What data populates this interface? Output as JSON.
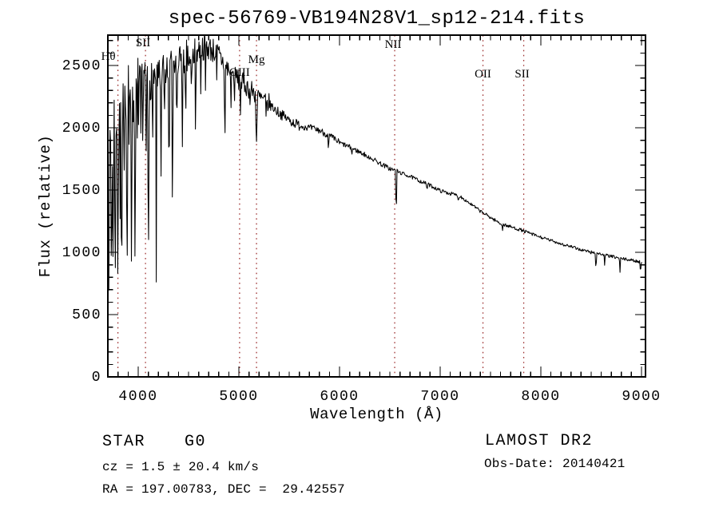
{
  "title": "spec-56769-VB194N28V1_sp12-214.fits",
  "axes": {
    "x": {
      "label": "Wavelength (Å)",
      "min": 3698,
      "max": 9040,
      "major_ticks": [
        4000,
        5000,
        6000,
        7000,
        8000,
        9000
      ],
      "minor_step": 100
    },
    "y": {
      "label": "Flux (relative)",
      "min": 0,
      "max": 2744,
      "major_ticks": [
        0,
        500,
        1000,
        1500,
        2000,
        2500
      ],
      "minor_step": 100
    }
  },
  "spectral_line_markers": [
    {
      "label": "Hθ",
      "wavelength": 3798,
      "label_y": 70,
      "label_dx": -12
    },
    {
      "label": "SII",
      "wavelength": 4072,
      "label_y": 53,
      "label_dx": -3
    },
    {
      "label": "OIII",
      "wavelength": 5007,
      "label_y": 90,
      "label_dx": 0
    },
    {
      "label": "Mg",
      "wavelength": 5175,
      "label_y": 74,
      "label_dx": 0
    },
    {
      "label": "NII",
      "wavelength": 6548,
      "label_y": 55,
      "label_dx": -2
    },
    {
      "label": "OII",
      "wavelength": 7425,
      "label_y": 92,
      "label_dx": 0
    },
    {
      "label": "SII",
      "wavelength": 7830,
      "label_y": 92,
      "label_dx": -2
    }
  ],
  "annotations": {
    "classification": "STAR",
    "subclass": "G0",
    "survey": "LAMOST DR2",
    "cz": "cz = 1.5 ± 20.4 km/s",
    "obs_date": "Obs-Date: 20140421",
    "ra_dec": "RA = 197.00783, DEC =  29.42557"
  },
  "chart_data": {
    "type": "line",
    "title": "spec-56769-VB194N28V1_sp12-214.fits",
    "xlabel": "Wavelength (Å)",
    "ylabel": "Flux (relative)",
    "xlim": [
      3698,
      9040
    ],
    "ylim": [
      0,
      2744
    ],
    "grid": false,
    "legend": "none",
    "line_color": "#000000",
    "marker_color": "#9e3232",
    "sample_range": [
      3702,
      9005
    ],
    "continuum": [
      [
        3700,
        1500
      ],
      [
        3740,
        2050
      ],
      [
        3800,
        2150
      ],
      [
        3900,
        2280
      ],
      [
        4000,
        2330
      ],
      [
        4100,
        2380
      ],
      [
        4200,
        2420
      ],
      [
        4300,
        2470
      ],
      [
        4400,
        2530
      ],
      [
        4500,
        2580
      ],
      [
        4600,
        2630
      ],
      [
        4680,
        2650
      ],
      [
        4750,
        2620
      ],
      [
        4800,
        2580
      ],
      [
        4850,
        2520
      ],
      [
        4900,
        2460
      ],
      [
        5000,
        2380
      ],
      [
        5100,
        2320
      ],
      [
        5200,
        2240
      ],
      [
        5300,
        2190
      ],
      [
        5400,
        2120
      ],
      [
        5500,
        2060
      ],
      [
        5600,
        2020
      ],
      [
        5700,
        2000
      ],
      [
        5800,
        1980
      ],
      [
        5900,
        1935
      ],
      [
        6000,
        1880
      ],
      [
        6100,
        1845
      ],
      [
        6200,
        1805
      ],
      [
        6300,
        1765
      ],
      [
        6400,
        1715
      ],
      [
        6500,
        1672
      ],
      [
        6600,
        1640
      ],
      [
        6700,
        1610
      ],
      [
        6800,
        1572
      ],
      [
        6900,
        1538
      ],
      [
        7000,
        1495
      ],
      [
        7200,
        1450
      ],
      [
        7400,
        1330
      ],
      [
        7600,
        1230
      ],
      [
        7800,
        1180
      ],
      [
        8000,
        1120
      ],
      [
        8200,
        1070
      ],
      [
        8400,
        1020
      ],
      [
        8600,
        985
      ],
      [
        8800,
        950
      ],
      [
        8950,
        930
      ],
      [
        9005,
        918
      ]
    ],
    "absorption_lines": [
      [
        3712,
        850,
        8
      ],
      [
        3734,
        700,
        8
      ],
      [
        3750,
        780,
        7
      ],
      [
        3771,
        680,
        8
      ],
      [
        3798,
        700,
        8
      ],
      [
        3820,
        1150,
        6
      ],
      [
        3835,
        640,
        8
      ],
      [
        3860,
        1250,
        6
      ],
      [
        3889,
        580,
        8
      ],
      [
        3910,
        1450,
        6
      ],
      [
        3933,
        515,
        9
      ],
      [
        3968,
        555,
        9
      ],
      [
        4026,
        1850,
        6
      ],
      [
        4045,
        1750,
        6
      ],
      [
        4077,
        1520,
        6
      ],
      [
        4101,
        800,
        9
      ],
      [
        4144,
        1950,
        6
      ],
      [
        4180,
        560,
        5
      ],
      [
        4226,
        1420,
        7
      ],
      [
        4260,
        1950,
        6
      ],
      [
        4305,
        1500,
        9
      ],
      [
        4340,
        1160,
        8
      ],
      [
        4383,
        1720,
        6
      ],
      [
        4437,
        1350,
        5
      ],
      [
        4471,
        2050,
        5
      ],
      [
        4530,
        2150,
        5
      ],
      [
        4570,
        1560,
        5
      ],
      [
        4620,
        2250,
        5
      ],
      [
        4668,
        2280,
        5
      ],
      [
        4780,
        2300,
        5
      ],
      [
        4861,
        1780,
        8
      ],
      [
        4920,
        2140,
        6
      ],
      [
        4957,
        2230,
        5
      ],
      [
        5015,
        2110,
        6
      ],
      [
        5110,
        2150,
        5
      ],
      [
        5175,
        1880,
        11
      ],
      [
        5270,
        2010,
        6
      ],
      [
        5580,
        2015,
        6
      ],
      [
        5890,
        1790,
        8
      ],
      [
        6122,
        1760,
        5
      ],
      [
        6280,
        1700,
        5
      ],
      [
        6563,
        1255,
        7
      ],
      [
        6870,
        1490,
        6
      ],
      [
        7180,
        1395,
        6
      ],
      [
        7620,
        1170,
        6
      ],
      [
        8230,
        1040,
        5
      ],
      [
        8498,
        985,
        5
      ],
      [
        8548,
        830,
        6
      ],
      [
        8635,
        855,
        5
      ],
      [
        8786,
        810,
        6
      ],
      [
        8990,
        835,
        7
      ]
    ],
    "noise_regions": [
      [
        3702,
        3745,
        620
      ],
      [
        3745,
        4000,
        260
      ],
      [
        4000,
        4200,
        165
      ],
      [
        4200,
        4500,
        140
      ],
      [
        4500,
        4900,
        105
      ],
      [
        4900,
        5300,
        85
      ],
      [
        5300,
        5600,
        42
      ],
      [
        5600,
        6000,
        28
      ],
      [
        6000,
        6600,
        20
      ],
      [
        6600,
        7200,
        15
      ],
      [
        7200,
        8000,
        13
      ],
      [
        8000,
        9006,
        12
      ]
    ]
  }
}
